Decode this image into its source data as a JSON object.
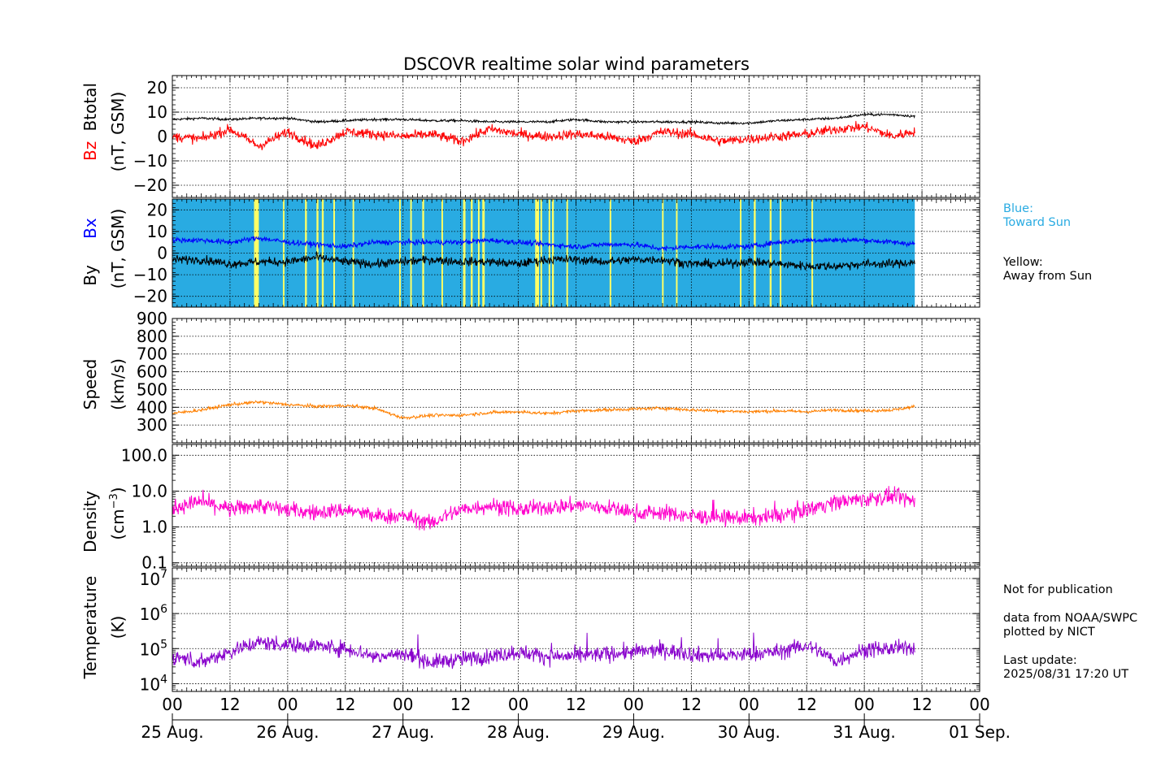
{
  "title": "DSCOVR realtime solar wind parameters",
  "colors": {
    "bz": "#ff0000",
    "btotal": "#000000",
    "bx": "#0000ff",
    "by": "#000000",
    "toward_bg": "#29abe2",
    "away_bar": "#ffff66",
    "speed": "#ff8000",
    "density": "#ff00cc",
    "temperature": "#8800cc",
    "blue_note": "#29abe2"
  },
  "panels": {
    "mag": {
      "label_bz": "Bz",
      "label_btotal": "Btotal",
      "units": "(nT, GSM)"
    },
    "imf": {
      "label_by": "By",
      "label_bx": "Bx",
      "units": "(nT, GSM)"
    },
    "speed": {
      "label": "Speed",
      "units": "(km/s)"
    },
    "density": {
      "label": "Density",
      "units_pre": "(cm",
      "units_sup": "−3",
      "units_post": ")"
    },
    "temperature": {
      "label": "Temperature",
      "units": "(K)"
    }
  },
  "legend": {
    "blue_line1": "Blue:",
    "blue_line2": "Toward Sun",
    "yellow_line1": "Yellow:",
    "yellow_line2": "Away from Sun"
  },
  "notes": {
    "not_for_publication": "Not for publication",
    "data_from": "data from NOAA/SWPC",
    "plotted_by": "plotted by NICT",
    "last_update_label": "Last update:",
    "last_update_value": "2025/08/31 17:20 UT"
  },
  "chart_data": [
    {
      "type": "line",
      "title": "DSCOVR realtime solar wind parameters",
      "ylabel": "Bz Btotal (nT, GSM)",
      "ylim": [
        -25,
        25
      ],
      "yticks": [
        -20,
        -10,
        0,
        10,
        20
      ],
      "ytick_labels": [
        "−20",
        "−10",
        "0",
        "10",
        "20"
      ],
      "x_hours": [
        0,
        6,
        12,
        18,
        24,
        30,
        36,
        42,
        48,
        54,
        60,
        66,
        72,
        78,
        84,
        90,
        96,
        102,
        108,
        114,
        120,
        126,
        132,
        138,
        144,
        150,
        156,
        162
      ],
      "series": [
        {
          "name": "Btotal",
          "values": [
            7,
            7.5,
            7,
            7.5,
            7.5,
            6,
            6.5,
            7,
            7,
            6.5,
            6.5,
            6,
            6,
            6,
            7,
            6,
            6,
            6,
            6,
            5.5,
            5.5,
            6.5,
            7,
            7.5,
            9,
            9,
            8,
            7
          ]
        },
        {
          "name": "Bz",
          "values": [
            0,
            -1,
            3,
            -4,
            2,
            -4,
            2,
            1,
            0,
            1,
            -2,
            3,
            1,
            0,
            1,
            0,
            -2,
            2,
            1,
            -2,
            -1,
            0,
            1,
            3,
            4,
            0,
            3,
            3
          ]
        }
      ]
    },
    {
      "type": "line",
      "ylabel": "By Bx (nT, GSM)",
      "ylim": [
        -25,
        25
      ],
      "yticks": [
        -20,
        -10,
        0,
        10,
        20
      ],
      "ytick_labels": [
        "−20",
        "−10",
        "0",
        "10",
        "20"
      ],
      "x_hours": [
        0,
        6,
        12,
        18,
        24,
        30,
        36,
        42,
        48,
        54,
        60,
        66,
        72,
        78,
        84,
        90,
        96,
        102,
        108,
        114,
        120,
        126,
        132,
        138,
        144,
        150,
        156,
        162
      ],
      "series": [
        {
          "name": "Bx",
          "values": [
            6,
            6,
            5,
            7,
            5,
            4,
            3,
            5,
            5,
            5,
            5,
            6,
            5,
            4,
            3,
            4,
            4,
            2,
            3,
            3,
            3,
            5,
            6,
            6,
            6,
            5,
            4,
            3
          ]
        },
        {
          "name": "By",
          "values": [
            -3,
            -3,
            -5,
            -4,
            -4,
            -2,
            -4,
            -5,
            -4,
            -3,
            -4,
            -4,
            -5,
            -3,
            -3,
            -4,
            -3,
            -3,
            -5,
            -5,
            -4,
            -5,
            -6,
            -6,
            -5,
            -5,
            -4,
            -5
          ]
        }
      ],
      "away_from_sun_hours": [
        [
          17,
          18
        ],
        [
          23,
          23.3
        ],
        [
          27.6,
          28
        ],
        [
          30,
          30.4
        ],
        [
          31.1,
          31.5
        ],
        [
          33.5,
          33.8
        ],
        [
          37.5,
          37.8
        ],
        [
          47.2,
          47.5
        ],
        [
          49.5,
          49.8
        ],
        [
          52,
          52.4
        ],
        [
          56,
          56.3
        ],
        [
          60.5,
          61
        ],
        [
          62.1,
          62.5
        ],
        [
          63.6,
          63.9
        ],
        [
          64.5,
          65
        ],
        [
          75.5,
          76.3
        ],
        [
          76.6,
          76.9
        ],
        [
          78.3,
          78.5
        ],
        [
          79,
          79.4
        ],
        [
          82,
          82.2
        ],
        [
          91,
          91.2
        ],
        [
          101.9,
          102.2
        ],
        [
          104.8,
          105.1
        ],
        [
          118.1,
          118.4
        ],
        [
          121,
          121.4
        ],
        [
          124.3,
          124.7
        ],
        [
          126.4,
          126.7
        ],
        [
          133,
          133.3
        ]
      ]
    },
    {
      "type": "line",
      "ylabel": "Speed (km/s)",
      "ylim": [
        200,
        900
      ],
      "yticks": [
        300,
        400,
        500,
        600,
        700,
        800,
        900
      ],
      "x_hours": [
        0,
        6,
        12,
        18,
        24,
        30,
        36,
        42,
        48,
        54,
        60,
        66,
        72,
        78,
        84,
        90,
        96,
        102,
        108,
        114,
        120,
        126,
        132,
        138,
        144,
        150,
        156,
        162
      ],
      "series": [
        {
          "name": "Speed",
          "values": [
            365,
            385,
            415,
            430,
            415,
            405,
            410,
            395,
            340,
            355,
            355,
            370,
            375,
            365,
            380,
            385,
            390,
            395,
            385,
            380,
            375,
            380,
            375,
            385,
            380,
            385,
            410,
            445
          ]
        }
      ]
    },
    {
      "type": "line",
      "ylabel": "Density (cm−3)",
      "yscale": "log",
      "ylim": [
        0.08,
        200
      ],
      "yticks": [
        0.1,
        1.0,
        10.0,
        100.0
      ],
      "ytick_labels": [
        "0.1",
        "1.0",
        "10.0",
        "100.0"
      ],
      "x_hours": [
        0,
        6,
        12,
        18,
        24,
        30,
        36,
        42,
        48,
        54,
        60,
        66,
        72,
        78,
        84,
        90,
        96,
        102,
        108,
        114,
        120,
        126,
        132,
        138,
        144,
        150,
        156,
        162
      ],
      "series": [
        {
          "name": "Density",
          "values": [
            3.5,
            5,
            3,
            4,
            3,
            2.5,
            3,
            2,
            2,
            1.2,
            3,
            4,
            3,
            3.5,
            4,
            3.5,
            2.5,
            2.5,
            2,
            1.8,
            1.8,
            2,
            3,
            5,
            6,
            7,
            4.5,
            4
          ]
        }
      ]
    },
    {
      "type": "line",
      "ylabel": "Temperature (K)",
      "yscale": "log",
      "ylim": [
        6000,
        20000000
      ],
      "yticks": [
        10000,
        100000,
        1000000,
        10000000
      ],
      "ytick_labels": [
        "10^4",
        "10^5",
        "10^6",
        "10^7"
      ],
      "xlim_hours": [
        0,
        168
      ],
      "xtick_labels": [
        "00",
        "12",
        "00",
        "12",
        "00",
        "12",
        "00",
        "12",
        "00",
        "12",
        "00",
        "12",
        "00",
        "12",
        "00"
      ],
      "date_labels": [
        "25 Aug.",
        "26 Aug.",
        "27 Aug.",
        "28 Aug.",
        "29 Aug.",
        "30 Aug.",
        "31 Aug.",
        "01 Sep."
      ],
      "x_hours": [
        0,
        6,
        12,
        18,
        24,
        30,
        36,
        42,
        48,
        54,
        60,
        66,
        72,
        78,
        84,
        90,
        96,
        102,
        108,
        114,
        120,
        126,
        132,
        138,
        144,
        150,
        156,
        162
      ],
      "series": [
        {
          "name": "Temperature",
          "values": [
            60000,
            40000,
            80000,
            150000,
            130000,
            120000,
            100000,
            60000,
            70000,
            40000,
            50000,
            60000,
            80000,
            60000,
            60000,
            70000,
            80000,
            90000,
            70000,
            60000,
            70000,
            80000,
            120000,
            40000,
            90000,
            100000,
            110000,
            100000
          ]
        }
      ]
    }
  ]
}
